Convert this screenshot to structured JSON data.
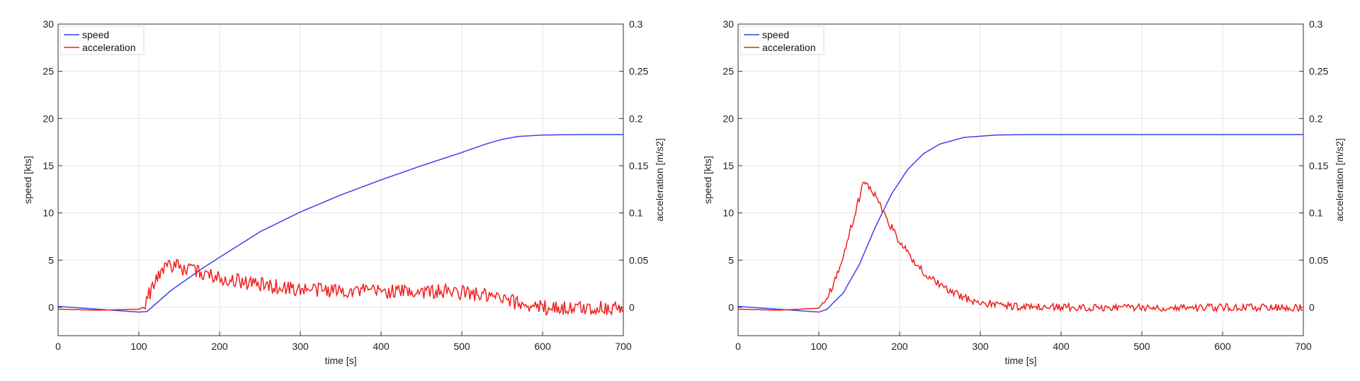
{
  "chart_data": [
    {
      "type": "line",
      "xlabel": "time [s]",
      "ylabel_left": "speed [kts]",
      "ylabel_right": "acceleration [m/s2]",
      "xlim": [
        0,
        700
      ],
      "ylim_left": [
        -3,
        30
      ],
      "ylim_right": [
        -0.03,
        0.3
      ],
      "x_ticks": [
        "0",
        "100",
        "200",
        "300",
        "400",
        "500",
        "600",
        "700"
      ],
      "y_ticks_left": [
        "0",
        "5",
        "10",
        "15",
        "20",
        "25",
        "30"
      ],
      "y_ticks_right": [
        "0",
        "0.05",
        "0.1",
        "0.15",
        "0.2",
        "0.25",
        "0.3"
      ],
      "grid": true,
      "legend_position": "top-left",
      "series": [
        {
          "name": "speed",
          "axis": "left",
          "color": "#3f3ff2",
          "points": [
            [
              0,
              0.1
            ],
            [
              50,
              -0.2
            ],
            [
              100,
              -0.5
            ],
            [
              110,
              -0.45
            ],
            [
              120,
              0.3
            ],
            [
              140,
              1.8
            ],
            [
              160,
              3.0
            ],
            [
              180,
              4.2
            ],
            [
              200,
              5.3
            ],
            [
              250,
              8.0
            ],
            [
              300,
              10.1
            ],
            [
              350,
              11.9
            ],
            [
              400,
              13.5
            ],
            [
              450,
              15.0
            ],
            [
              500,
              16.4
            ],
            [
              530,
              17.3
            ],
            [
              550,
              17.8
            ],
            [
              570,
              18.1
            ],
            [
              600,
              18.25
            ],
            [
              650,
              18.3
            ],
            [
              700,
              18.3
            ]
          ]
        },
        {
          "name": "acceleration",
          "axis": "right",
          "color": "#f01f1f",
          "noise": 0.008,
          "points": [
            [
              0,
              -0.002
            ],
            [
              50,
              -0.003
            ],
            [
              100,
              -0.002
            ],
            [
              105,
              0.0
            ],
            [
              115,
              0.018
            ],
            [
              125,
              0.034
            ],
            [
              135,
              0.047
            ],
            [
              150,
              0.042
            ],
            [
              200,
              0.032
            ],
            [
              250,
              0.024
            ],
            [
              300,
              0.019
            ],
            [
              350,
              0.018
            ],
            [
              400,
              0.017
            ],
            [
              450,
              0.017
            ],
            [
              500,
              0.016
            ],
            [
              530,
              0.012
            ],
            [
              560,
              0.006
            ],
            [
              600,
              0.0
            ],
            [
              650,
              -0.001
            ],
            [
              700,
              0.0
            ]
          ]
        }
      ]
    },
    {
      "type": "line",
      "xlabel": "time [s]",
      "ylabel_left": "speed [kts]",
      "ylabel_right": "acceleration [m/s2]",
      "xlim": [
        0,
        700
      ],
      "ylim_left": [
        -3,
        30
      ],
      "ylim_right": [
        -0.03,
        0.3
      ],
      "x_ticks": [
        "0",
        "100",
        "200",
        "300",
        "400",
        "500",
        "600",
        "700"
      ],
      "y_ticks_left": [
        "0",
        "5",
        "10",
        "15",
        "20",
        "25",
        "30"
      ],
      "y_ticks_right": [
        "0",
        "0.05",
        "0.1",
        "0.15",
        "0.2",
        "0.25",
        "0.3"
      ],
      "grid": true,
      "legend_position": "top-left",
      "series": [
        {
          "name": "speed",
          "axis": "left",
          "color": "#3f3ff2",
          "points": [
            [
              0,
              0.1
            ],
            [
              50,
              -0.2
            ],
            [
              100,
              -0.5
            ],
            [
              110,
              -0.2
            ],
            [
              130,
              1.5
            ],
            [
              150,
              4.5
            ],
            [
              170,
              8.5
            ],
            [
              190,
              12.0
            ],
            [
              210,
              14.6
            ],
            [
              230,
              16.3
            ],
            [
              250,
              17.3
            ],
            [
              280,
              18.0
            ],
            [
              320,
              18.25
            ],
            [
              360,
              18.3
            ],
            [
              400,
              18.3
            ],
            [
              700,
              18.3
            ]
          ]
        },
        {
          "name": "acceleration",
          "axis": "right",
          "color": "#f01f1f",
          "noise": 0.004,
          "points": [
            [
              0,
              -0.002
            ],
            [
              50,
              -0.003
            ],
            [
              100,
              -0.001
            ],
            [
              105,
              0.005
            ],
            [
              115,
              0.018
            ],
            [
              125,
              0.04
            ],
            [
              135,
              0.07
            ],
            [
              145,
              0.1
            ],
            [
              155,
              0.132
            ],
            [
              160,
              0.128
            ],
            [
              170,
              0.12
            ],
            [
              180,
              0.1
            ],
            [
              190,
              0.085
            ],
            [
              200,
              0.07
            ],
            [
              220,
              0.045
            ],
            [
              240,
              0.03
            ],
            [
              260,
              0.018
            ],
            [
              280,
              0.01
            ],
            [
              300,
              0.005
            ],
            [
              330,
              0.002
            ],
            [
              360,
              0.0
            ],
            [
              400,
              0.0
            ],
            [
              700,
              0.0
            ]
          ]
        }
      ]
    }
  ]
}
